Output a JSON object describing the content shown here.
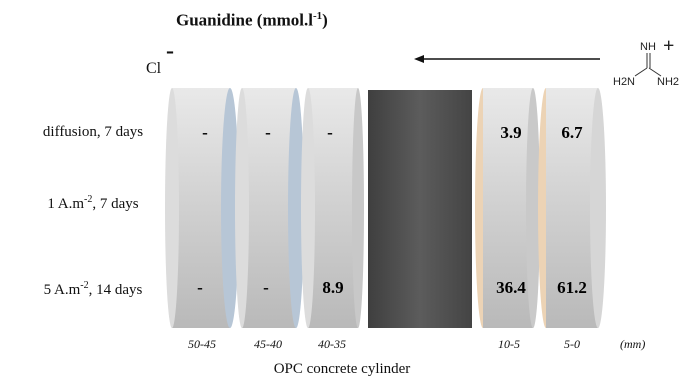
{
  "title_main": "Guanidine (mmol.l",
  "title_sup": "-1",
  "title_close": ")",
  "anion": {
    "symbol": "Cl",
    "charge": "-"
  },
  "cation": {
    "charge": "+",
    "groups": [
      "NH",
      "H2N",
      "NH2"
    ]
  },
  "rows": [
    {
      "label": "diffusion, 7 days"
    },
    {
      "label_a": "1 A.m",
      "label_sup": "-2",
      "label_b": ", 7 days"
    },
    {
      "label_a": "5 A.m",
      "label_sup": "-2",
      "label_b": ", 14 days"
    }
  ],
  "segments": [
    "50-45",
    "45-40",
    "40-35",
    "10-5",
    "5-0"
  ],
  "unit": "(mm)",
  "values": {
    "diffusion": [
      "-",
      "-",
      "-",
      "3.9",
      "6.7"
    ],
    "current_5A": [
      "-",
      "-",
      "8.9",
      "36.4",
      "61.2"
    ]
  },
  "footer": "OPC concrete cylinder",
  "colors": {
    "grey_disc": "#d2d2d2",
    "blue_face": "#b7c6d6",
    "peach_face": "#ecd3b5",
    "dark_block": "#555555"
  }
}
